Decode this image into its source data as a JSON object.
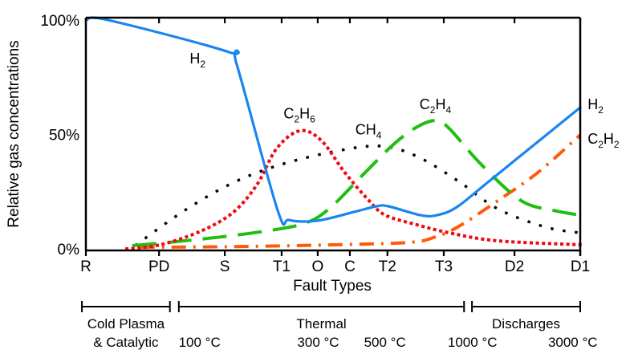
{
  "chart_data": {
    "type": "line",
    "title": "",
    "xlabel": "Fault Types",
    "ylabel": "Relative gas concentrations",
    "x_domain": [
      0,
      1
    ],
    "x_unit": "fraction of fault-type axis",
    "ylim": [
      0,
      100
    ],
    "y_ticks": [
      {
        "value": 0,
        "label": "0%"
      },
      {
        "value": 50,
        "label": "50%"
      },
      {
        "value": 100,
        "label": "100%"
      }
    ],
    "x_ticks": [
      {
        "pos": 0.0,
        "label": "R"
      },
      {
        "pos": 0.148,
        "label": "PD"
      },
      {
        "pos": 0.281,
        "label": "S"
      },
      {
        "pos": 0.396,
        "label": "T1"
      },
      {
        "pos": 0.469,
        "label": "O"
      },
      {
        "pos": 0.534,
        "label": "C"
      },
      {
        "pos": 0.61,
        "label": "T2"
      },
      {
        "pos": 0.724,
        "label": "T3"
      },
      {
        "pos": 0.867,
        "label": "D2"
      },
      {
        "pos": 1.0,
        "label": "D1"
      }
    ],
    "grid": false,
    "legend": "inline labels",
    "series": [
      {
        "name": "H2",
        "label_base": "H",
        "label_sub": "2",
        "color": "#1a85f0",
        "style": "solid",
        "points": [
          [
            0,
            100
          ],
          [
            0.045,
            100
          ],
          [
            0.289,
            86
          ],
          [
            0.305,
            80.7
          ],
          [
            0.388,
            16.8
          ],
          [
            0.411,
            12.6
          ],
          [
            0.468,
            12.3
          ],
          [
            0.542,
            16.1
          ],
          [
            0.588,
            18.6
          ],
          [
            0.612,
            18.6
          ],
          [
            0.677,
            14.7
          ],
          [
            0.71,
            14.7
          ],
          [
            0.75,
            18.2
          ],
          [
            0.817,
            29.8
          ],
          [
            1,
            61.8
          ]
        ]
      },
      {
        "name": "C2H6",
        "label_base": "C",
        "label_sub": "2",
        "label_base2": "H",
        "label_sub2": "6",
        "color": "#f00a14",
        "style": "dotted",
        "points": [
          [
            0.083,
            0
          ],
          [
            0.151,
            1.8
          ],
          [
            0.232,
            7.7
          ],
          [
            0.297,
            15.8
          ],
          [
            0.346,
            28
          ],
          [
            0.386,
            43.9
          ],
          [
            0.433,
            51.6
          ],
          [
            0.476,
            47.4
          ],
          [
            0.524,
            33.3
          ],
          [
            0.573,
            21
          ],
          [
            0.606,
            14.7
          ],
          [
            0.67,
            10.5
          ],
          [
            0.735,
            7
          ],
          [
            0.833,
            3.5
          ],
          [
            1,
            1.8
          ]
        ]
      },
      {
        "name": "CH4",
        "label_base": "CH",
        "label_sub": "4",
        "color": "#000000",
        "style": "dotted-sparse",
        "points": [
          [
            0.102,
            1.8
          ],
          [
            0.2,
            16.8
          ],
          [
            0.297,
            28.8
          ],
          [
            0.394,
            36.8
          ],
          [
            0.508,
            42.8
          ],
          [
            0.597,
            44.9
          ],
          [
            0.67,
            40.4
          ],
          [
            0.752,
            29.8
          ],
          [
            0.833,
            17.5
          ],
          [
            0.93,
            9.5
          ],
          [
            1,
            7
          ]
        ]
      },
      {
        "name": "C2H4",
        "label_base": "C",
        "label_sub": "2",
        "label_base2": "H",
        "label_sub2": "4",
        "color": "#1fbf0f",
        "style": "dashed",
        "points": [
          [
            0.094,
            1.4
          ],
          [
            0.232,
            4.2
          ],
          [
            0.362,
            7.7
          ],
          [
            0.443,
            11.2
          ],
          [
            0.492,
            17.5
          ],
          [
            0.557,
            31.6
          ],
          [
            0.622,
            45.6
          ],
          [
            0.67,
            53.3
          ],
          [
            0.708,
            56.1
          ],
          [
            0.735,
            52.6
          ],
          [
            0.8,
            36.8
          ],
          [
            0.881,
            21
          ],
          [
            0.946,
            16.8
          ],
          [
            1,
            14.7
          ]
        ]
      },
      {
        "name": "C2H2",
        "label_base": "C",
        "label_sub": "2",
        "label_base2": "H",
        "label_sub2": "2",
        "color": "#ff5a0a",
        "style": "dash-dot",
        "points": [
          [
            0.11,
            0.7
          ],
          [
            0.313,
            1
          ],
          [
            0.508,
            1.8
          ],
          [
            0.654,
            2.8
          ],
          [
            0.703,
            4.9
          ],
          [
            0.752,
            9.5
          ],
          [
            0.833,
            21
          ],
          [
            0.914,
            33.3
          ],
          [
            1,
            49.8
          ]
        ]
      }
    ],
    "curve_labels": [
      {
        "series": "H2",
        "text": "H2",
        "at": [
          0.21,
          81
        ]
      },
      {
        "series": "C2H6",
        "text": "C2H6",
        "at": [
          0.4,
          57
        ]
      },
      {
        "series": "CH4",
        "text": "CH4",
        "at": [
          0.545,
          50
        ]
      },
      {
        "series": "C2H4",
        "text": "C2H4",
        "at": [
          0.675,
          61
        ]
      },
      {
        "series": "H2",
        "text": "H2",
        "at": [
          1.015,
          61
        ]
      },
      {
        "series": "C2H2",
        "text": "C2H2",
        "at": [
          1.015,
          46
        ]
      }
    ],
    "categories": [
      {
        "name": "Cold Plasma & Catalytic",
        "line1": "Cold Plasma",
        "line2": "& Catalytic",
        "span": [
          -0.008,
          0.17
        ]
      },
      {
        "name": "Thermal",
        "line1": "Thermal",
        "line2": "",
        "span": [
          0.188,
          0.765
        ]
      },
      {
        "name": "Discharges",
        "line1": "Discharges",
        "line2": "",
        "span": [
          0.781,
          1.0
        ]
      }
    ],
    "temperatures": [
      {
        "label": "100 °C",
        "pos": 0.23
      },
      {
        "label": "300 °C",
        "pos": 0.47
      },
      {
        "label": "500 °C",
        "pos": 0.605
      },
      {
        "label": "1000 °C",
        "pos": 0.782
      },
      {
        "label": "3000 °C",
        "pos": 0.985
      }
    ]
  }
}
